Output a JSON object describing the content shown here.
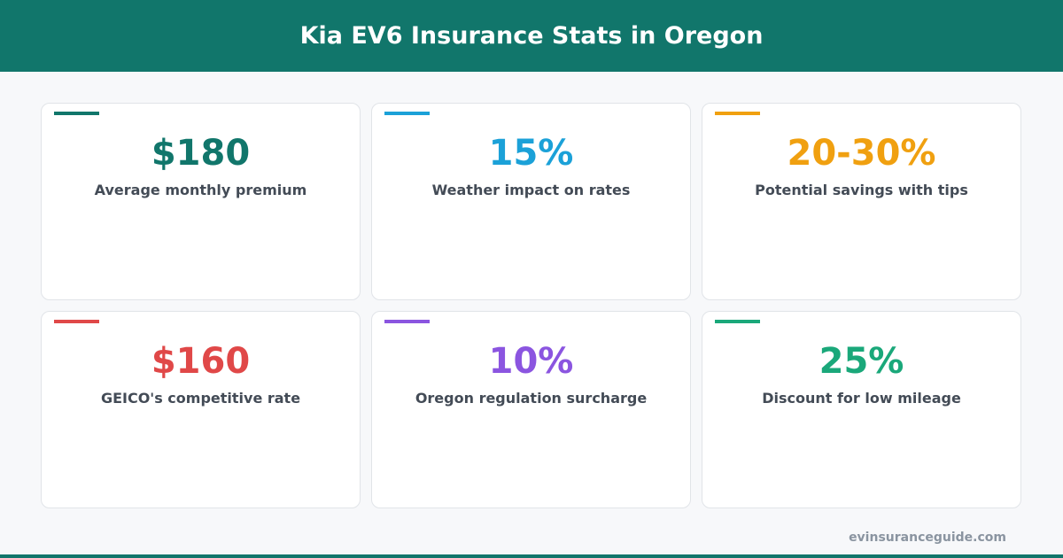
{
  "header": {
    "title": "Kia EV6 Insurance Stats in Oregon"
  },
  "cards": [
    {
      "value": "$180",
      "label": "Average monthly premium",
      "color": "#11766b"
    },
    {
      "value": "15%",
      "label": "Weather impact on rates",
      "color": "#1ba1d8"
    },
    {
      "value": "20-30%",
      "label": "Potential savings with tips",
      "color": "#f0a010"
    },
    {
      "value": "$160",
      "label": "GEICO's competitive rate",
      "color": "#e04848"
    },
    {
      "value": "10%",
      "label": "Oregon regulation surcharge",
      "color": "#8b55e0"
    },
    {
      "value": "25%",
      "label": "Discount for low mileage",
      "color": "#1aa87a"
    }
  ],
  "footer": {
    "source": "evinsuranceguide.com"
  }
}
